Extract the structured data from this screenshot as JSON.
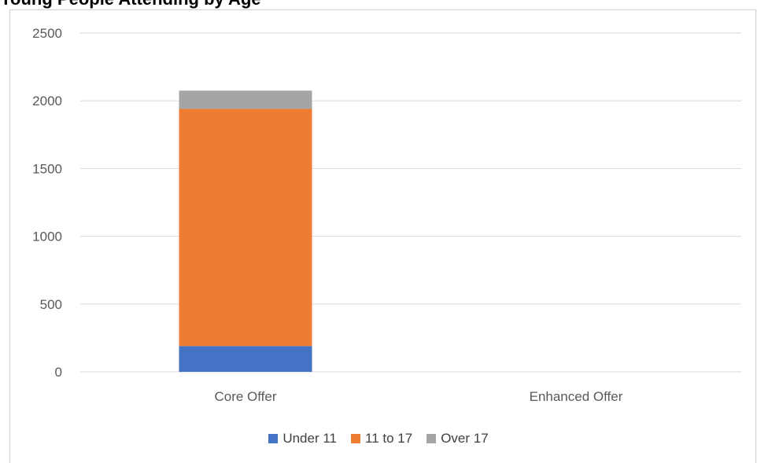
{
  "chart_data": {
    "type": "bar",
    "stacked": true,
    "title": "Young People Attending by Age",
    "categories": [
      "Core Offer",
      "Enhanced Offer"
    ],
    "series": [
      {
        "name": "Under 11",
        "values": [
          190,
          0
        ],
        "color": "#4472C4"
      },
      {
        "name": "11 to 17",
        "values": [
          1750,
          0
        ],
        "color": "#ED7D31"
      },
      {
        "name": "Over 17",
        "values": [
          135,
          0
        ],
        "color": "#A5A5A5"
      }
    ],
    "ylim": [
      0,
      2500
    ],
    "yticks": [
      0,
      500,
      1000,
      1500,
      2000,
      2500
    ],
    "grid": true,
    "legend": "bottom"
  }
}
